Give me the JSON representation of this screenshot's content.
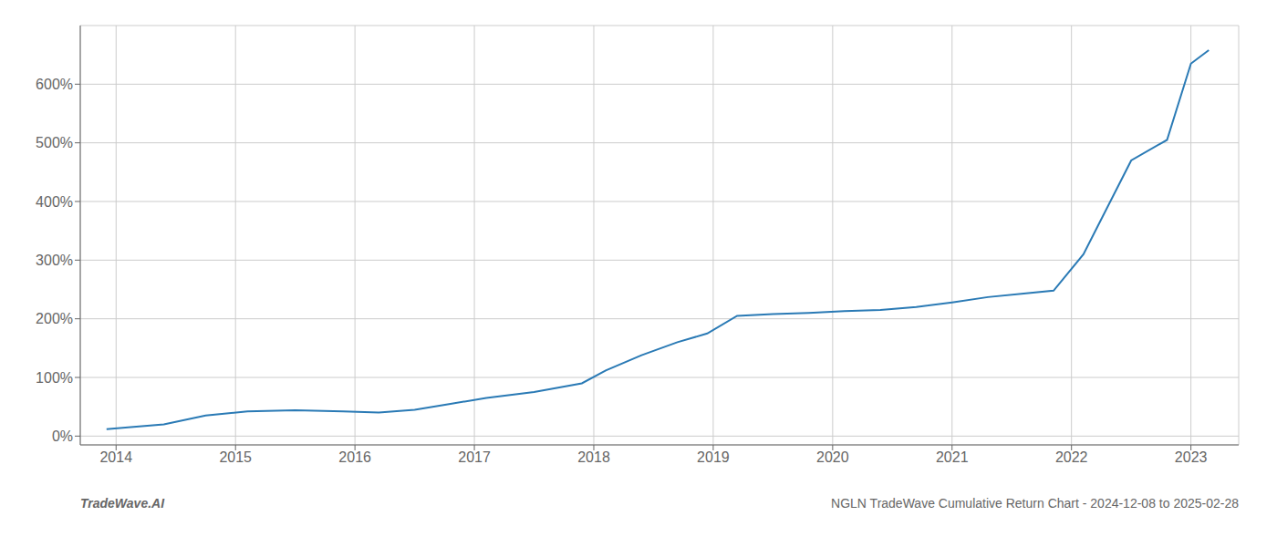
{
  "chart_data": {
    "type": "line",
    "title": "NGLN TradeWave Cumulative Return Chart - 2024-12-08 to 2025-02-28",
    "annotations": [
      "TradeWave.AI"
    ],
    "x": [
      2013.92,
      2014.1,
      2014.4,
      2014.75,
      2015.1,
      2015.5,
      2015.9,
      2016.2,
      2016.5,
      2016.8,
      2017.1,
      2017.5,
      2017.9,
      2018.1,
      2018.4,
      2018.7,
      2018.95,
      2019.2,
      2019.5,
      2019.8,
      2020.1,
      2020.4,
      2020.7,
      2021.0,
      2021.3,
      2021.6,
      2021.85,
      2022.1,
      2022.5,
      2022.8,
      2023.0,
      2023.15
    ],
    "values": [
      12,
      15,
      20,
      35,
      42,
      44,
      42,
      40,
      45,
      55,
      65,
      75,
      90,
      112,
      138,
      160,
      175,
      205,
      208,
      210,
      213,
      215,
      220,
      228,
      237,
      243,
      248,
      310,
      470,
      505,
      635,
      658
    ],
    "color": "#2a7ab5",
    "xlim": [
      2013.7,
      2023.4
    ],
    "ylim": [
      -15,
      700
    ],
    "xticks": [
      2014,
      2015,
      2016,
      2017,
      2018,
      2019,
      2020,
      2021,
      2022,
      2023
    ],
    "yticks": [
      {
        "value": 0,
        "label": "0%"
      },
      {
        "value": 100,
        "label": "100%"
      },
      {
        "value": 200,
        "label": "200%"
      },
      {
        "value": 300,
        "label": "300%"
      },
      {
        "value": 400,
        "label": "400%"
      },
      {
        "value": 500,
        "label": "500%"
      },
      {
        "value": 600,
        "label": "600%"
      }
    ],
    "grid": true
  }
}
